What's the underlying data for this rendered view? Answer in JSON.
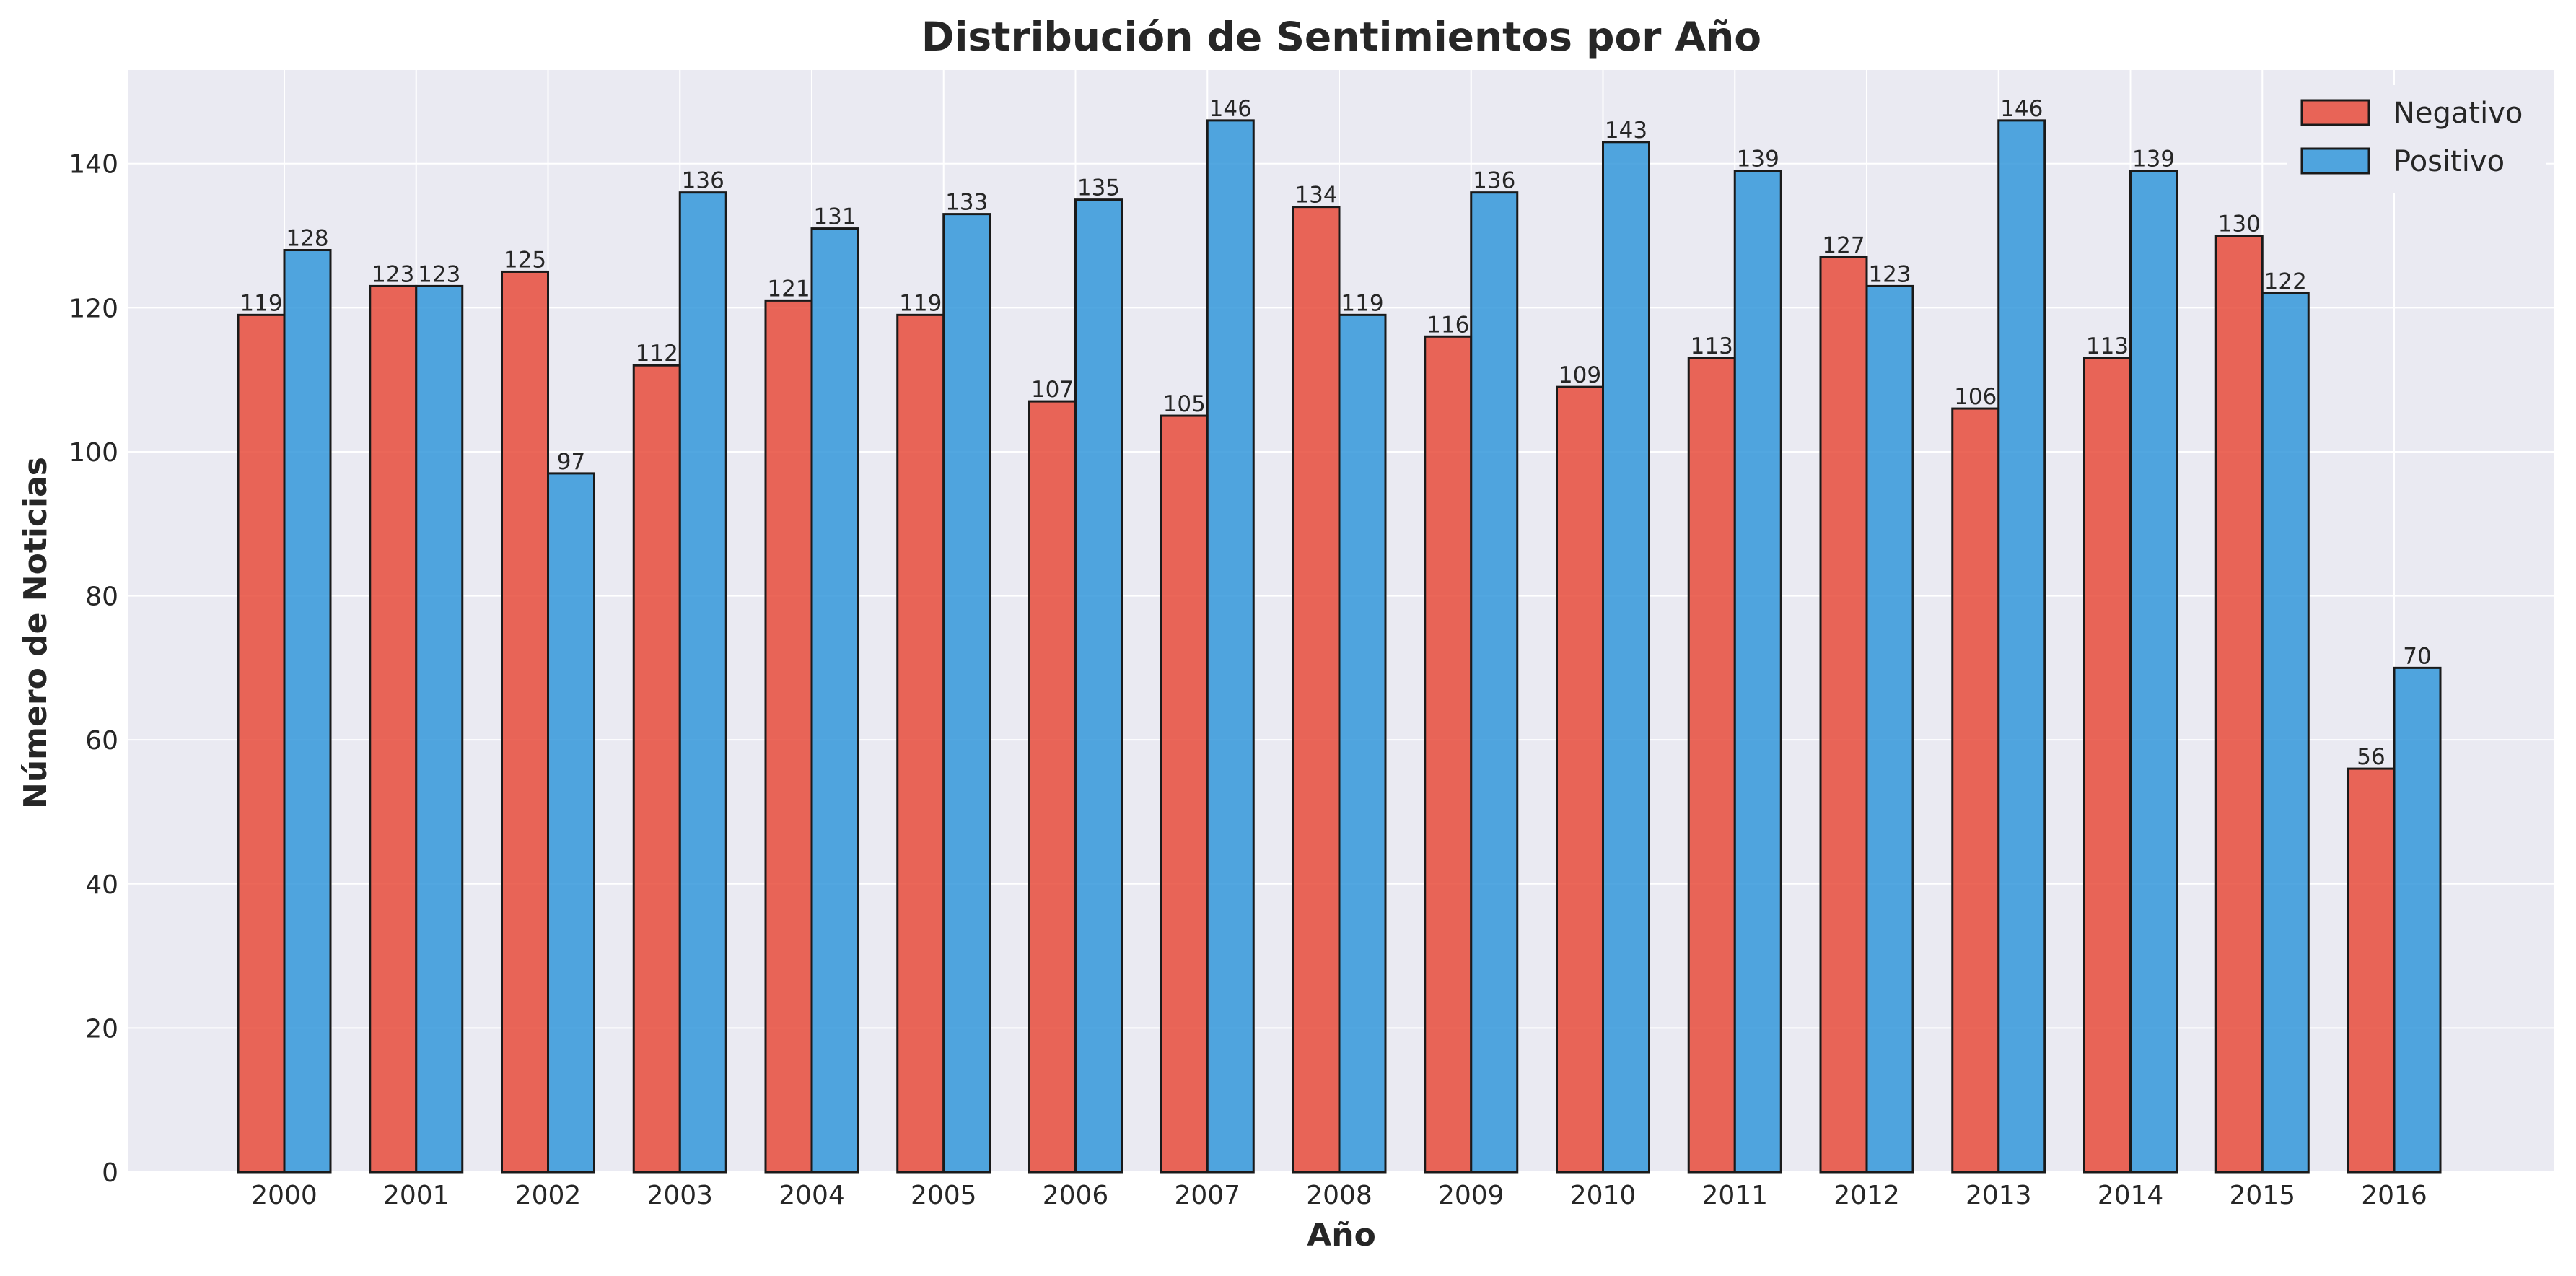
{
  "chart_data": {
    "type": "bar",
    "title": "Distribución de Sentimientos por Año",
    "xlabel": "Año",
    "ylabel": "Número de Noticias",
    "categories": [
      "2000",
      "2001",
      "2002",
      "2003",
      "2004",
      "2005",
      "2006",
      "2007",
      "2008",
      "2009",
      "2010",
      "2011",
      "2012",
      "2013",
      "2014",
      "2015",
      "2016"
    ],
    "series": [
      {
        "name": "Negativo",
        "color": "#e74c3c",
        "values": [
          119,
          123,
          125,
          112,
          121,
          119,
          107,
          105,
          134,
          116,
          109,
          113,
          127,
          106,
          113,
          130,
          56
        ]
      },
      {
        "name": "Positivo",
        "color": "#3498db",
        "values": [
          128,
          123,
          97,
          136,
          131,
          133,
          135,
          146,
          119,
          136,
          143,
          139,
          123,
          146,
          139,
          122,
          70
        ]
      }
    ],
    "ylim": [
      0,
      153
    ],
    "yticks": [
      0,
      20,
      40,
      60,
      80,
      100,
      120,
      140
    ],
    "grid": true,
    "legend_position": "top-right",
    "background_color": "#eaeaf2"
  }
}
